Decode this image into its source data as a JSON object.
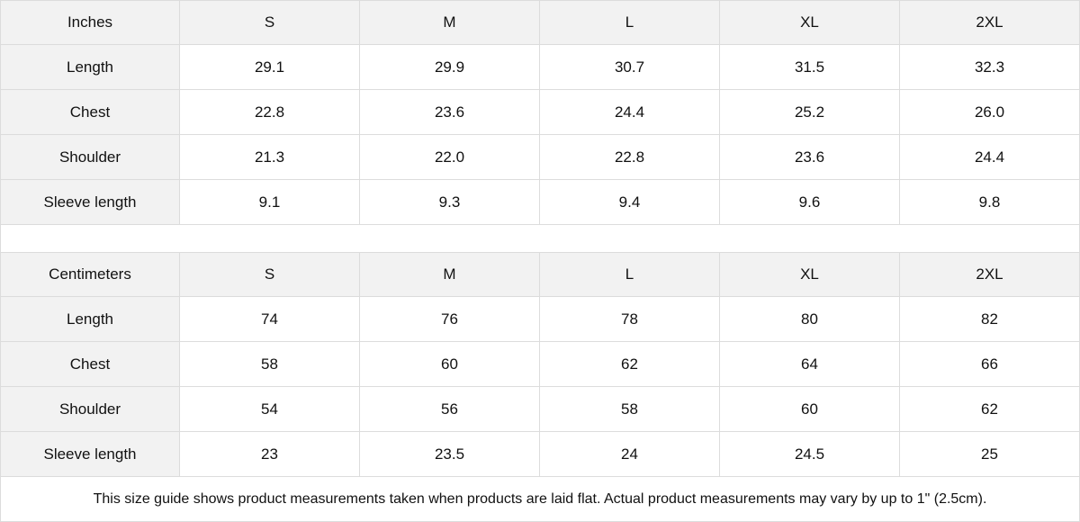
{
  "tables": [
    {
      "unit": "Inches",
      "sizes": [
        "S",
        "M",
        "L",
        "XL",
        "2XL"
      ],
      "rows": [
        {
          "label": "Length",
          "values": [
            "29.1",
            "29.9",
            "30.7",
            "31.5",
            "32.3"
          ]
        },
        {
          "label": "Chest",
          "values": [
            "22.8",
            "23.6",
            "24.4",
            "25.2",
            "26.0"
          ]
        },
        {
          "label": "Shoulder",
          "values": [
            "21.3",
            "22.0",
            "22.8",
            "23.6",
            "24.4"
          ]
        },
        {
          "label": "Sleeve length",
          "values": [
            "9.1",
            "9.3",
            "9.4",
            "9.6",
            "9.8"
          ]
        }
      ]
    },
    {
      "unit": "Centimeters",
      "sizes": [
        "S",
        "M",
        "L",
        "XL",
        "2XL"
      ],
      "rows": [
        {
          "label": "Length",
          "values": [
            "74",
            "76",
            "78",
            "80",
            "82"
          ]
        },
        {
          "label": "Chest",
          "values": [
            "58",
            "60",
            "62",
            "64",
            "66"
          ]
        },
        {
          "label": "Shoulder",
          "values": [
            "54",
            "56",
            "58",
            "60",
            "62"
          ]
        },
        {
          "label": "Sleeve length",
          "values": [
            "23",
            "23.5",
            "24",
            "24.5",
            "25"
          ]
        }
      ]
    }
  ],
  "footnote": "This size guide shows product measurements taken when products are laid flat.  Actual product measurements may vary by up to 1\" (2.5cm).",
  "colors": {
    "header_bg": "#f2f2f2",
    "border": "#dcdcdc"
  }
}
